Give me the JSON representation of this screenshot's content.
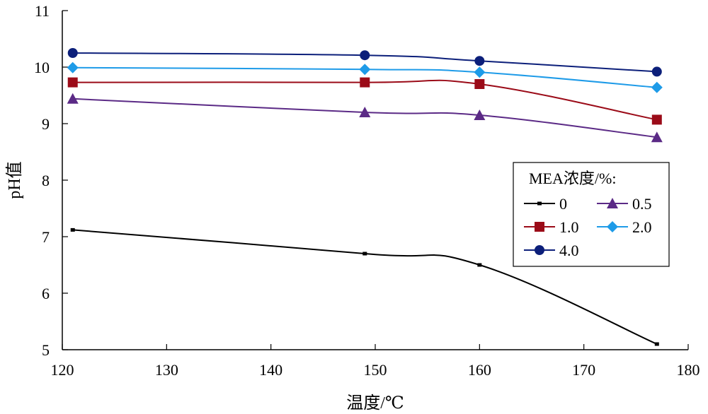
{
  "chart_data": {
    "type": "line",
    "title": "",
    "xlabel": "温度/℃",
    "ylabel": "pH值",
    "xlim": [
      120,
      180
    ],
    "ylim": [
      5,
      11
    ],
    "xticks": [
      120,
      130,
      140,
      150,
      160,
      170,
      180
    ],
    "yticks": [
      5,
      6,
      7,
      8,
      9,
      10,
      11
    ],
    "grid": false,
    "legend": {
      "title": "MEA浓度/%:",
      "placement": "right"
    },
    "x": [
      121,
      149,
      160,
      177
    ],
    "series": [
      {
        "name": "0",
        "values": [
          7.12,
          6.7,
          6.5,
          5.1
        ],
        "color": "#000000",
        "marker": "small-square"
      },
      {
        "name": "0.5",
        "values": [
          9.44,
          9.2,
          9.15,
          8.76
        ],
        "color": "#5b2a86",
        "marker": "triangle"
      },
      {
        "name": "1.0",
        "values": [
          9.73,
          9.73,
          9.7,
          9.07
        ],
        "color": "#9b0b18",
        "marker": "square"
      },
      {
        "name": "2.0",
        "values": [
          9.99,
          9.96,
          9.91,
          9.64
        ],
        "color": "#1e9be8",
        "marker": "diamond"
      },
      {
        "name": "4.0",
        "values": [
          10.25,
          10.21,
          10.11,
          9.92
        ],
        "color": "#0c1f7a",
        "marker": "circle"
      }
    ]
  }
}
